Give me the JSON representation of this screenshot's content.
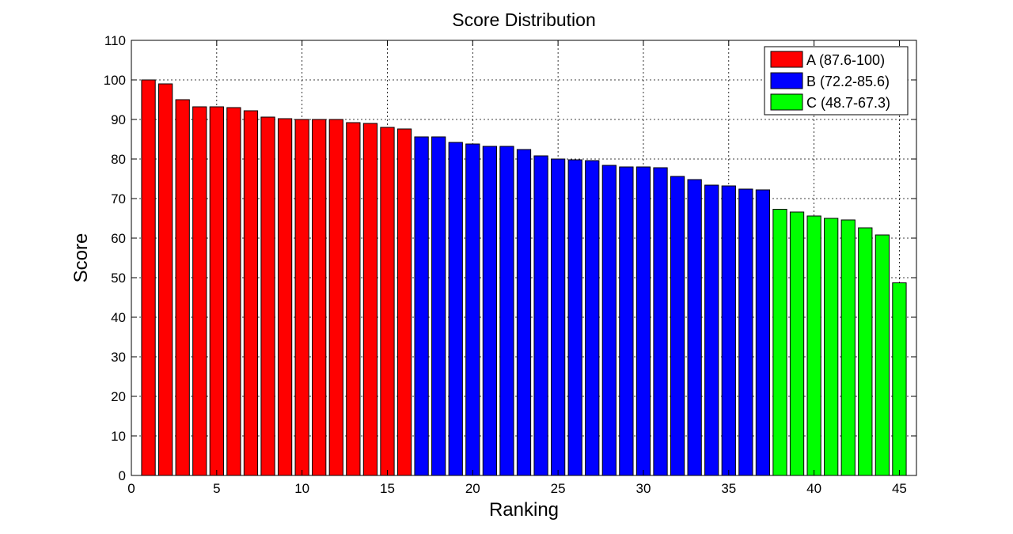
{
  "chart_data": {
    "type": "bar",
    "title": "Score Distribution",
    "xlabel": "Ranking",
    "ylabel": "Score",
    "xlim": [
      0,
      46
    ],
    "ylim": [
      0,
      110
    ],
    "xticks": [
      0,
      5,
      10,
      15,
      20,
      25,
      30,
      35,
      40,
      45
    ],
    "yticks": [
      0,
      10,
      20,
      30,
      40,
      50,
      60,
      70,
      80,
      90,
      100,
      110
    ],
    "grid": true,
    "legend_position": "top-right",
    "series": [
      {
        "name": "A (87.6-100)",
        "color": "#ff0000",
        "x": [
          1,
          2,
          3,
          4,
          5,
          6,
          7,
          8,
          9,
          10,
          11,
          12,
          13,
          14,
          15,
          16
        ],
        "values": [
          100,
          99,
          95,
          93.2,
          93.2,
          93,
          92.2,
          90.6,
          90.2,
          90,
          90,
          90,
          89.2,
          89,
          88,
          87.6
        ]
      },
      {
        "name": "B (72.2-85.6)",
        "color": "#0000ff",
        "x": [
          17,
          18,
          19,
          20,
          21,
          22,
          23,
          24,
          25,
          26,
          27,
          28,
          29,
          30,
          31,
          32,
          33,
          34,
          35,
          36,
          37
        ],
        "values": [
          85.6,
          85.6,
          84.2,
          83.8,
          83.2,
          83.2,
          82.4,
          80.8,
          80,
          79.8,
          79.6,
          78.4,
          78,
          78,
          77.8,
          75.6,
          74.8,
          73.4,
          73.2,
          72.4,
          72.2
        ]
      },
      {
        "name": "C (48.7-67.3)",
        "color": "#00ff00",
        "x": [
          38,
          39,
          40,
          41,
          42,
          43,
          44,
          45
        ],
        "values": [
          67.3,
          66.6,
          65.6,
          65,
          64.6,
          62.6,
          60.8,
          48.7
        ]
      }
    ]
  }
}
